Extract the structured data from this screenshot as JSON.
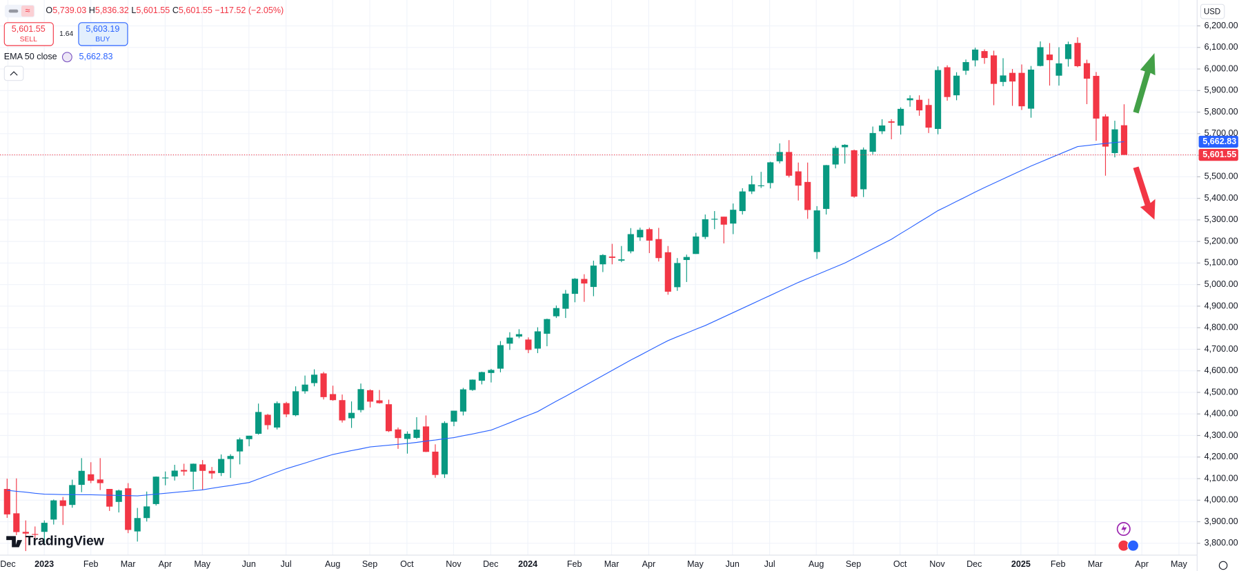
{
  "header": {
    "ohlc": [
      {
        "key": "O",
        "value": "5,739.03"
      },
      {
        "key": "H",
        "value": "5,836.32"
      },
      {
        "key": "L",
        "value": "5,601.55"
      },
      {
        "key": "C",
        "value": "5,601.55"
      }
    ],
    "change": "−117.52 (−2.05%)"
  },
  "trade": {
    "sell": {
      "price": "5,601.55",
      "label": "SELL"
    },
    "spread": "1.64",
    "buy": {
      "price": "5,603.19",
      "label": "BUY"
    }
  },
  "currency": "USD",
  "logo": "TradingView",
  "chart_data": {
    "type": "candlestick",
    "up_color": "#089981",
    "down_color": "#f23645",
    "grid": true,
    "x_labels": [
      "Dec",
      "2023",
      "Feb",
      "Mar",
      "Apr",
      "May",
      "Jun",
      "Jul",
      "Aug",
      "Sep",
      "Oct",
      "Nov",
      "Dec",
      "2024",
      "Feb",
      "Mar",
      "Apr",
      "May",
      "Jun",
      "Jul",
      "Aug",
      "Sep",
      "Oct",
      "Nov",
      "Dec",
      "2025",
      "Feb",
      "Mar",
      "Apr",
      "May"
    ],
    "ylim": [
      3745,
      6320
    ],
    "yticks": [
      {
        "value": 3800,
        "label": "3,800.00"
      },
      {
        "value": 3900,
        "label": "3,900.00"
      },
      {
        "value": 4000,
        "label": "4,000.00"
      },
      {
        "value": 4100,
        "label": "4,100.00"
      },
      {
        "value": 4200,
        "label": "4,200.00"
      },
      {
        "value": 4300,
        "label": "4,300.00"
      },
      {
        "value": 4400,
        "label": "4,400.00"
      },
      {
        "value": 4500,
        "label": "4,500.00"
      },
      {
        "value": 4600,
        "label": "4,600.00"
      },
      {
        "value": 4700,
        "label": "4,700.00"
      },
      {
        "value": 4800,
        "label": "4,800.00"
      },
      {
        "value": 4900,
        "label": "4,900.00"
      },
      {
        "value": 5000,
        "label": "5,000.00"
      },
      {
        "value": 5100,
        "label": "5,100.00"
      },
      {
        "value": 5200,
        "label": "5,200.00"
      },
      {
        "value": 5300,
        "label": "5,300.00"
      },
      {
        "value": 5400,
        "label": "5,400.00"
      },
      {
        "value": 5500,
        "label": "5,500.00"
      },
      {
        "value": 5600,
        "label": "5,600.00"
      },
      {
        "value": 5700,
        "label": "5,700.00"
      },
      {
        "value": 5800,
        "label": "5,800.00"
      },
      {
        "value": 5900,
        "label": "5,900.00"
      },
      {
        "value": 6000,
        "label": "6,000.00"
      },
      {
        "value": 6100,
        "label": "6,100.00"
      },
      {
        "value": 6200,
        "label": "6,200.00"
      }
    ],
    "open": [
      4052,
      3939,
      3853,
      3843,
      3853,
      3910,
      3999,
      3978,
      4071,
      4120,
      4096,
      4052,
      3992,
      4055,
      3855,
      3917,
      3982,
      4102,
      4110,
      4140,
      4132,
      4166,
      4136,
      4126,
      4191,
      4226,
      4283,
      4308,
      4396,
      4337,
      4450,
      4394,
      4505,
      4543,
      4588,
      4492,
      4464,
      4380,
      4418,
      4510,
      4463,
      4445,
      4328,
      4284,
      4289,
      4342,
      4225,
      4120,
      4364,
      4411,
      4511,
      4554,
      4590,
      4610,
      4726,
      4759,
      4745,
      4703,
      4772,
      4853,
      4888,
      4957,
      5026,
      4989,
      5094,
      5130,
      5111,
      5154,
      5219,
      5257,
      5211,
      5150,
      4988,
      5114,
      5142,
      5221,
      5305,
      5315,
      5283,
      5341,
      5432,
      5460,
      5471,
      5572,
      5615,
      5525,
      5476,
      5151,
      5351,
      5557,
      5637,
      5623,
      5442,
      5616,
      5711,
      5757,
      5737,
      5855,
      5857,
      5833,
      5722,
      6008,
      5878,
      5992,
      6040,
      6083,
      6063,
      5940,
      5982,
      5982,
      5816,
      6014,
      6067,
      5969,
      6046,
      6121,
      6027,
      5968,
      5780,
      5610,
      5739.03
    ],
    "high": [
      4100,
      4101,
      3906,
      3878,
      3906,
      4003,
      4015,
      4095,
      4195,
      4176,
      4195,
      4052,
      4049,
      4079,
      3964,
      4040,
      4110,
      4133,
      4164,
      4169,
      4170,
      4186,
      4154,
      4212,
      4213,
      4290,
      4299,
      4448,
      4400,
      4458,
      4456,
      4528,
      4578,
      4607,
      4595,
      4531,
      4490,
      4458,
      4541,
      4514,
      4511,
      4466,
      4337,
      4319,
      4385,
      4393,
      4259,
      4366,
      4415,
      4521,
      4560,
      4596,
      4609,
      4738,
      4779,
      4793,
      4755,
      4802,
      4842,
      4903,
      4975,
      5030,
      5048,
      5111,
      5141,
      5189,
      5179,
      5262,
      5264,
      5264,
      5263,
      5179,
      5123,
      5139,
      5240,
      5325,
      5341,
      5315,
      5376,
      5447,
      5505,
      5523,
      5570,
      5655,
      5670,
      5566,
      5566,
      5364,
      5555,
      5643,
      5651,
      5626,
      5636,
      5733,
      5767,
      5767,
      5822,
      5878,
      5878,
      5862,
      6012,
      6017,
      5985,
      6044,
      6099,
      6091,
      6085,
      6050,
      6000,
      6021,
      6014,
      6128,
      6120,
      6101,
      6127,
      6147,
      6043,
      5986,
      5790,
      5760,
      5836.32
    ],
    "low": [
      3918,
      3838,
      3764,
      3801,
      3795,
      3887,
      3885,
      3965,
      4037,
      4079,
      4047,
      3950,
      3943,
      3847,
      3808,
      3901,
      3975,
      4069,
      4091,
      4114,
      4049,
      4048,
      4099,
      4112,
      4103,
      4166,
      4250,
      4304,
      4328,
      4328,
      4385,
      4389,
      4494,
      4528,
      4467,
      4461,
      4360,
      4335,
      4407,
      4430,
      4448,
      4316,
      4238,
      4216,
      4284,
      4223,
      4104,
      4103,
      4343,
      4393,
      4507,
      4537,
      4546,
      4593,
      4697,
      4751,
      4682,
      4682,
      4714,
      4845,
      4845,
      4918,
      4920,
      4946,
      5058,
      5094,
      5104,
      5145,
      5203,
      5146,
      5107,
      4953,
      4971,
      5012,
      5142,
      5211,
      5257,
      5191,
      5234,
      5325,
      5420,
      5448,
      5446,
      5562,
      5497,
      5390,
      5305,
      5119,
      5325,
      5539,
      5561,
      5403,
      5406,
      5604,
      5698,
      5674,
      5696,
      5825,
      5783,
      5703,
      5697,
      5853,
      5855,
      5973,
      6012,
      6024,
      5832,
      5920,
      5829,
      5810,
      5774,
      6012,
      5923,
      5923,
      6011,
      6008,
      5837,
      5667,
      5505,
      5590,
      5601.55
    ],
    "close": [
      3934,
      3852,
      3845,
      3840,
      3895,
      3999,
      3973,
      4070,
      4136,
      4090,
      4079,
      3970,
      4045,
      3862,
      3917,
      3971,
      4109,
      4105,
      4137,
      4133,
      4169,
      4136,
      4124,
      4191,
      4205,
      4282,
      4299,
      4409,
      4348,
      4450,
      4398,
      4505,
      4536,
      4582,
      4478,
      4464,
      4370,
      4405,
      4515,
      4457,
      4450,
      4320,
      4288,
      4308,
      4327,
      4224,
      4117,
      4358,
      4415,
      4514,
      4559,
      4594,
      4604,
      4719,
      4754,
      4770,
      4697,
      4783,
      4840,
      4891,
      4958,
      5027,
      5005,
      5088,
      5137,
      5124,
      5117,
      5234,
      5254,
      5204,
      5123,
      4967,
      5100,
      5128,
      5223,
      5303,
      5305,
      5278,
      5347,
      5432,
      5465,
      5460,
      5567,
      5615,
      5505,
      5459,
      5346,
      5344,
      5554,
      5634,
      5648,
      5408,
      5626,
      5703,
      5738,
      5751,
      5815,
      5864,
      5808,
      5728,
      5995,
      5870,
      5969,
      6032,
      6090,
      6051,
      5931,
      5970,
      5942,
      5827,
      5997,
      6101,
      6041,
      6026,
      6115,
      6013,
      5955,
      5770,
      5640,
      5720,
      5601.55
    ],
    "ema": {
      "name": "EMA 50 close",
      "legend_value": "5,662.83",
      "color": "#2962ff",
      "values": [
        4046,
        4041,
        4037,
        4032,
        4028,
        4027,
        4026,
        4026,
        4025,
        4025,
        4024,
        4023,
        4022,
        4021,
        4020,
        4024,
        4028,
        4032,
        4036,
        4040,
        4044,
        4048,
        4055,
        4062,
        4068,
        4075,
        4082,
        4098,
        4114,
        4130,
        4146,
        4159,
        4172,
        4186,
        4199,
        4212,
        4221,
        4230,
        4238,
        4247,
        4251,
        4255,
        4259,
        4263,
        4268,
        4274,
        4279,
        4285,
        4290,
        4299,
        4307,
        4316,
        4325,
        4342,
        4359,
        4377,
        4394,
        4411,
        4435,
        4459,
        4482,
        4506,
        4530,
        4554,
        4578,
        4602,
        4626,
        4650,
        4672,
        4695,
        4718,
        4740,
        4758,
        4775,
        4793,
        4810,
        4830,
        4850,
        4870,
        4890,
        4910,
        4930,
        4950,
        4970,
        4990,
        5010,
        5028,
        5046,
        5064,
        5082,
        5100,
        5122,
        5144,
        5166,
        5188,
        5210,
        5237,
        5263,
        5290,
        5316,
        5343,
        5364,
        5386,
        5407,
        5429,
        5450,
        5470,
        5490,
        5510,
        5530,
        5550,
        5568,
        5586,
        5604,
        5622,
        5640,
        5645,
        5650,
        5655,
        5659,
        5662.83
      ]
    },
    "price_tags": [
      {
        "value": 5662.83,
        "label": "5,662.83",
        "color": "#2962ff"
      },
      {
        "value": 5601.55,
        "label": "5,601.55",
        "color": "#f23645"
      }
    ]
  }
}
